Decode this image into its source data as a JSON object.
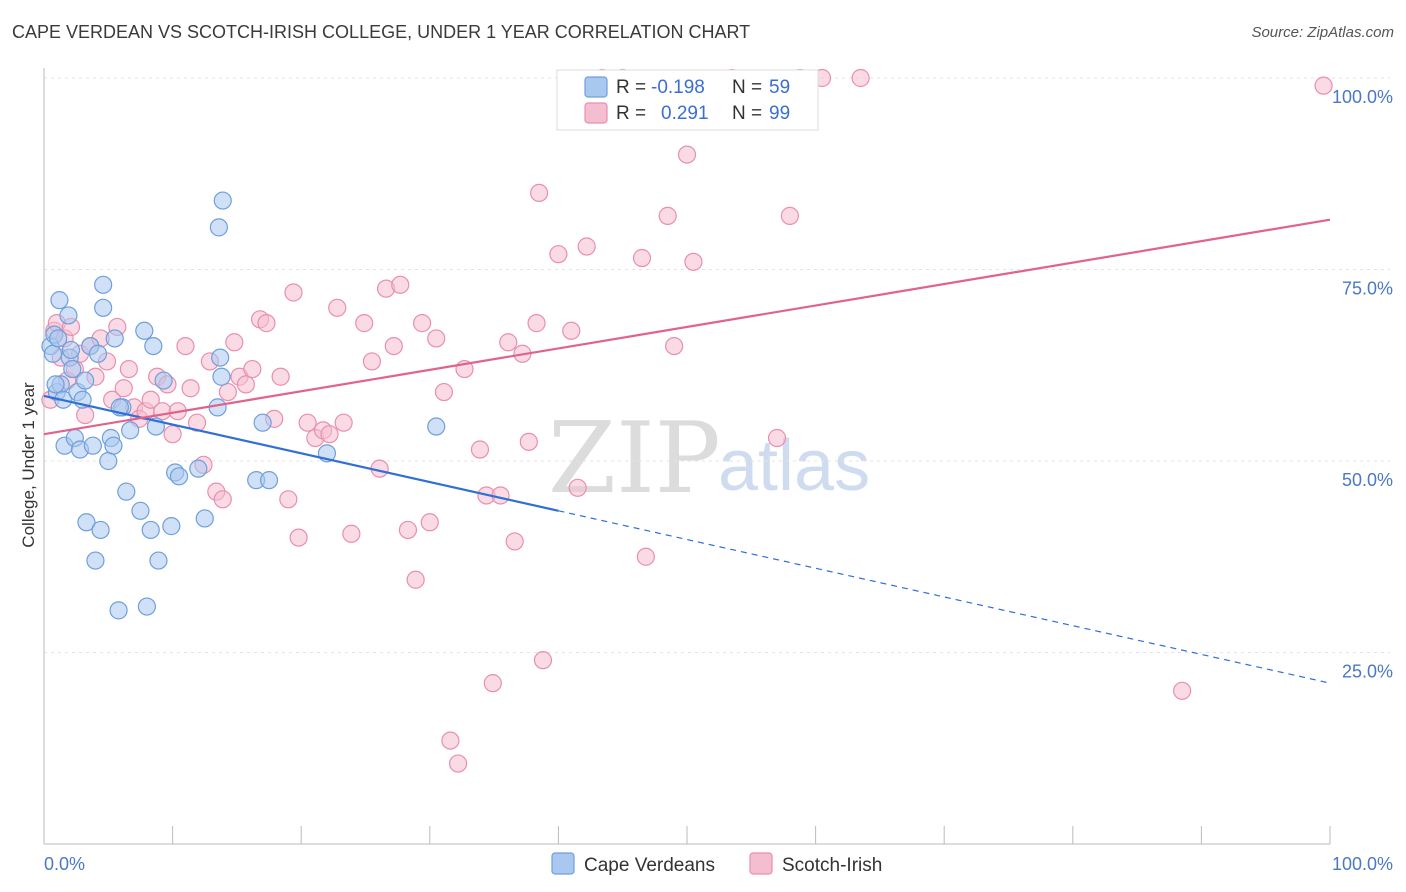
{
  "title": "CAPE VERDEAN VS SCOTCH-IRISH COLLEGE, UNDER 1 YEAR CORRELATION CHART",
  "source": "Source: ZipAtlas.com",
  "watermark": {
    "part1": "ZIP",
    "part2": "atlas"
  },
  "colors": {
    "blue_fill": "#a9c8f0",
    "blue_stroke": "#6f9fdc",
    "blue_line": "#2f6fd6",
    "pink_fill": "#f5bdd0",
    "pink_stroke": "#e88fae",
    "pink_line": "#e0628e",
    "grid": "#e3e3e3",
    "axis": "#bbbbbb",
    "tick_text": "#4a78c4"
  },
  "legend_stats": {
    "r_label": "R =",
    "n_label": "N =",
    "blue_r": "-0.198",
    "blue_n": "59",
    "pink_r": "0.291",
    "pink_n": "99"
  },
  "chart_data": {
    "type": "scatter",
    "title": "CAPE VERDEAN VS SCOTCH-IRISH COLLEGE, UNDER 1 YEAR CORRELATION CHART",
    "xlabel": "",
    "ylabel": "College, Under 1 year",
    "xlim": [
      0,
      100
    ],
    "ylim": [
      0,
      100
    ],
    "x_tick_labels": [
      "0.0%",
      "100.0%"
    ],
    "y_ticks": [
      25,
      50,
      75,
      100
    ],
    "y_tick_labels": [
      "25.0%",
      "50.0%",
      "75.0%",
      "100.0%"
    ],
    "grid": true,
    "legend_position": "bottom",
    "series": [
      {
        "name": "Cape Verdeans",
        "r": -0.198,
        "n": 59,
        "trend": {
          "x0": 0,
          "y0": 58.5,
          "x1": 40,
          "y1": 43.5,
          "dashed_to_x": 100,
          "dashed_to_y": 21
        },
        "points": [
          [
            0.5,
            65
          ],
          [
            0.7,
            64
          ],
          [
            0.8,
            66.5
          ],
          [
            1.0,
            59
          ],
          [
            1.2,
            71
          ],
          [
            1.3,
            60
          ],
          [
            1.5,
            58
          ],
          [
            1.6,
            52
          ],
          [
            1.9,
            69
          ],
          [
            2.0,
            63.5
          ],
          [
            2.2,
            62
          ],
          [
            2.4,
            53
          ],
          [
            2.6,
            59
          ],
          [
            2.8,
            51.5
          ],
          [
            3.0,
            58
          ],
          [
            3.2,
            60.5
          ],
          [
            3.3,
            42
          ],
          [
            3.6,
            65
          ],
          [
            3.8,
            52
          ],
          [
            4.0,
            37
          ],
          [
            4.2,
            64
          ],
          [
            4.4,
            41
          ],
          [
            4.6,
            70
          ],
          [
            4.6,
            73
          ],
          [
            5.0,
            50
          ],
          [
            5.2,
            53
          ],
          [
            5.4,
            52
          ],
          [
            5.5,
            66
          ],
          [
            5.8,
            30.5
          ],
          [
            6.1,
            57
          ],
          [
            6.4,
            46
          ],
          [
            6.7,
            54
          ],
          [
            7.5,
            43.5
          ],
          [
            7.8,
            67
          ],
          [
            8.0,
            31
          ],
          [
            8.3,
            41
          ],
          [
            8.5,
            65
          ],
          [
            8.7,
            54.5
          ],
          [
            8.9,
            37
          ],
          [
            9.3,
            60.5
          ],
          [
            9.9,
            41.5
          ],
          [
            10.2,
            48.5
          ],
          [
            12.0,
            49
          ],
          [
            12.5,
            42.5
          ],
          [
            13.5,
            57
          ],
          [
            13.7,
            63.5
          ],
          [
            13.8,
            61
          ],
          [
            13.6,
            80.5
          ],
          [
            13.9,
            84
          ],
          [
            16.5,
            47.5
          ],
          [
            17.5,
            47.5
          ],
          [
            17.0,
            55
          ],
          [
            22.0,
            51
          ],
          [
            30.5,
            54.5
          ],
          [
            1.1,
            66
          ],
          [
            2.1,
            64.5
          ],
          [
            0.9,
            60
          ],
          [
            5.9,
            57
          ],
          [
            10.5,
            48
          ]
        ]
      },
      {
        "name": "Scotch-Irish",
        "r": 0.291,
        "n": 99,
        "trend": {
          "x0": 0,
          "y0": 53.5,
          "x1": 100,
          "y1": 81.5
        },
        "points": [
          [
            0.5,
            58
          ],
          [
            0.8,
            67
          ],
          [
            1.0,
            68
          ],
          [
            1.3,
            63.5
          ],
          [
            1.6,
            66
          ],
          [
            1.8,
            60.5
          ],
          [
            2.1,
            67.5
          ],
          [
            2.4,
            62
          ],
          [
            2.8,
            64
          ],
          [
            3.2,
            56
          ],
          [
            3.6,
            65
          ],
          [
            4.0,
            61
          ],
          [
            4.4,
            66
          ],
          [
            4.9,
            63
          ],
          [
            5.3,
            58
          ],
          [
            5.7,
            67.5
          ],
          [
            6.2,
            59.5
          ],
          [
            6.6,
            62
          ],
          [
            7.0,
            57
          ],
          [
            7.4,
            55.5
          ],
          [
            7.9,
            56.5
          ],
          [
            8.3,
            58
          ],
          [
            8.8,
            61
          ],
          [
            9.2,
            56.5
          ],
          [
            9.6,
            60
          ],
          [
            10.0,
            53.5
          ],
          [
            10.4,
            56.5
          ],
          [
            11.0,
            65
          ],
          [
            11.4,
            59.5
          ],
          [
            11.9,
            55
          ],
          [
            12.4,
            49.5
          ],
          [
            12.9,
            63
          ],
          [
            13.4,
            46
          ],
          [
            13.9,
            45
          ],
          [
            14.3,
            59
          ],
          [
            14.8,
            65.5
          ],
          [
            15.2,
            61
          ],
          [
            15.7,
            60
          ],
          [
            16.2,
            62
          ],
          [
            16.8,
            68.5
          ],
          [
            17.3,
            68
          ],
          [
            17.9,
            55.5
          ],
          [
            18.4,
            61
          ],
          [
            19.0,
            45
          ],
          [
            19.4,
            72
          ],
          [
            19.8,
            40
          ],
          [
            20.5,
            55
          ],
          [
            21.1,
            53
          ],
          [
            21.7,
            54
          ],
          [
            22.2,
            53.5
          ],
          [
            22.8,
            70
          ],
          [
            23.3,
            55
          ],
          [
            23.9,
            40.5
          ],
          [
            24.9,
            68
          ],
          [
            25.5,
            63
          ],
          [
            26.1,
            49
          ],
          [
            26.6,
            72.5
          ],
          [
            27.2,
            65
          ],
          [
            27.7,
            73
          ],
          [
            28.3,
            41
          ],
          [
            28.9,
            34.5
          ],
          [
            29.4,
            68
          ],
          [
            30.0,
            42
          ],
          [
            30.5,
            66
          ],
          [
            31.1,
            59
          ],
          [
            31.6,
            13.5
          ],
          [
            32.2,
            10.5
          ],
          [
            32.7,
            62
          ],
          [
            33.9,
            51.5
          ],
          [
            34.4,
            45.5
          ],
          [
            34.9,
            21
          ],
          [
            35.5,
            45.5
          ],
          [
            36.1,
            65.5
          ],
          [
            36.6,
            39.5
          ],
          [
            37.2,
            64
          ],
          [
            37.7,
            52.5
          ],
          [
            38.3,
            68
          ],
          [
            38.8,
            24
          ],
          [
            38.5,
            85
          ],
          [
            40.0,
            77
          ],
          [
            41.0,
            67
          ],
          [
            41.5,
            46.5
          ],
          [
            42.2,
            78
          ],
          [
            43.4,
            100
          ],
          [
            45.0,
            100
          ],
          [
            46.5,
            76.5
          ],
          [
            46.8,
            37.5
          ],
          [
            48.5,
            82
          ],
          [
            49.0,
            65
          ],
          [
            50.0,
            90
          ],
          [
            50.5,
            76
          ],
          [
            53.5,
            100
          ],
          [
            57.0,
            53
          ],
          [
            58.0,
            82
          ],
          [
            58.8,
            100
          ],
          [
            60.5,
            100
          ],
          [
            63.5,
            100
          ],
          [
            88.5,
            20
          ],
          [
            99.5,
            99
          ]
        ]
      }
    ]
  }
}
